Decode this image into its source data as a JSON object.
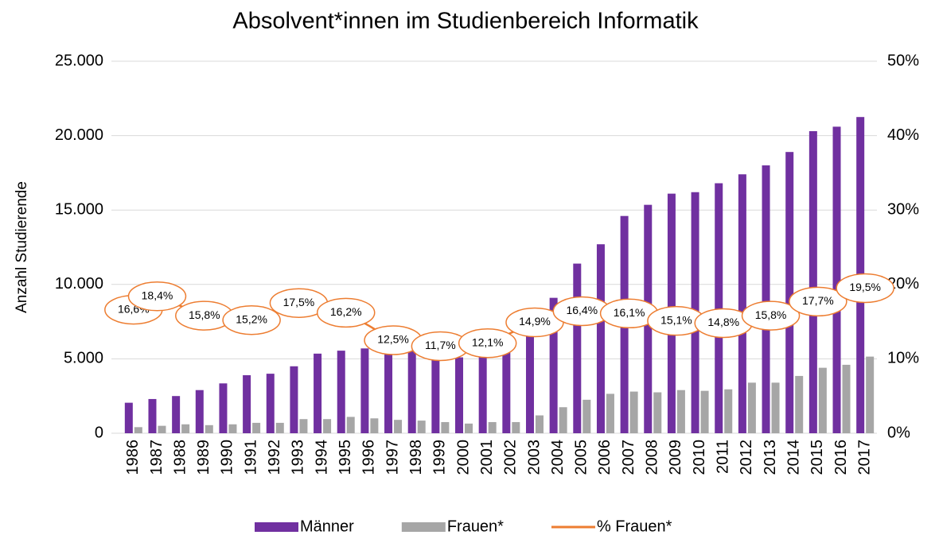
{
  "chart_data": {
    "type": "bar",
    "title": "Absolvent*innen im Studienbereich Informatik",
    "y_label": "Anzahl Studierende",
    "categories": [
      "1986",
      "1987",
      "1988",
      "1989",
      "1990",
      "1991",
      "1992",
      "1993",
      "1994",
      "1995",
      "1996",
      "1997",
      "1998",
      "1999",
      "2000",
      "2001",
      "2002",
      "2003",
      "2004",
      "2005",
      "2006",
      "2007",
      "2008",
      "2009",
      "2010",
      "2011",
      "2012",
      "2013",
      "2014",
      "2015",
      "2016",
      "2017"
    ],
    "series": [
      {
        "name": "Männer",
        "color": "#7030a0",
        "type": "bar",
        "values": [
          2050,
          2300,
          2500,
          2900,
          3350,
          3900,
          4000,
          4500,
          5350,
          5550,
          5700,
          5300,
          5500,
          5000,
          5100,
          5300,
          5500,
          6600,
          9100,
          11400,
          12700,
          14600,
          15350,
          16100,
          16200,
          16800,
          17400,
          18000,
          18900,
          20300,
          20600,
          21250
        ]
      },
      {
        "name": "Frauen*",
        "color": "#a6a6a6",
        "type": "bar",
        "values": [
          410,
          500,
          600,
          545,
          600,
          700,
          700,
          950,
          950,
          1100,
          1000,
          900,
          850,
          750,
          650,
          750,
          750,
          1200,
          1750,
          2250,
          2650,
          2800,
          2750,
          2900,
          2850,
          2950,
          3400,
          3400,
          3850,
          4400,
          4600,
          5150
        ]
      },
      {
        "name": "% Frauen*",
        "color": "#ed7d31",
        "type": "line",
        "axis": "y2",
        "values": [
          16.6,
          18.4,
          17.1,
          15.8,
          15.5,
          15.2,
          16.3,
          17.5,
          16.9,
          16.2,
          14.4,
          12.5,
          12.1,
          11.7,
          11.9,
          12.1,
          13.5,
          14.9,
          15.7,
          16.4,
          16.3,
          16.1,
          15.6,
          15.1,
          15.0,
          14.8,
          15.3,
          15.8,
          16.8,
          17.7,
          18.6,
          19.5
        ],
        "value_labels": [
          "16,6%",
          "18,4%",
          null,
          "15,8%",
          null,
          "15,2%",
          null,
          "17,5%",
          null,
          "16,2%",
          null,
          "12,5%",
          null,
          "11,7%",
          null,
          "12,1%",
          null,
          "14,9%",
          null,
          "16,4%",
          null,
          "16,1%",
          null,
          "15,1%",
          null,
          "14,8%",
          null,
          "15,8%",
          null,
          "17,7%",
          null,
          "19,5%"
        ]
      }
    ],
    "ylim": [
      0,
      25000
    ],
    "yticks": [
      0,
      {
        "value": 5000,
        "label": "5.000"
      },
      {
        "value": 10000,
        "label": "10.000"
      },
      {
        "value": 15000,
        "label": "15.000"
      },
      {
        "value": 20000,
        "label": "20.000"
      },
      {
        "value": 25000,
        "label": "25.000"
      }
    ],
    "y2lim": [
      0,
      50
    ],
    "y2ticks": [
      {
        "value": 0,
        "label": "0%"
      },
      {
        "value": 10,
        "label": "10%"
      },
      {
        "value": 20,
        "label": "20%"
      },
      {
        "value": 30,
        "label": "30%"
      },
      {
        "value": 40,
        "label": "40%"
      },
      {
        "value": 50,
        "label": "50%"
      }
    ],
    "grid": true,
    "legend": "bottom"
  }
}
